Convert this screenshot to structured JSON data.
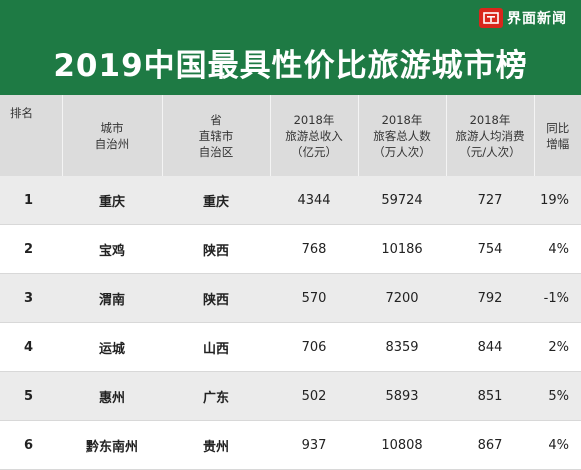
{
  "brand": {
    "name": "界面新闻"
  },
  "title": "2019中国最具性价比旅游城市榜",
  "columns": [
    {
      "key": "rank",
      "label": "排名"
    },
    {
      "key": "city",
      "label": "城市\n自治州"
    },
    {
      "key": "province",
      "label": "省\n直辖市\n自治区"
    },
    {
      "key": "revenue",
      "label": "2018年\n旅游总收入\n（亿元）"
    },
    {
      "key": "visitors",
      "label": "2018年\n旅客总人数\n（万人次）"
    },
    {
      "key": "per_capita",
      "label": "2018年\n旅游人均消费\n（元/人次）"
    },
    {
      "key": "growth",
      "label": "同比\n增幅"
    }
  ],
  "rows": [
    {
      "rank": "1",
      "city": "重庆",
      "province": "重庆",
      "revenue": "4344",
      "visitors": "59724",
      "per_capita": "727",
      "growth": "19%"
    },
    {
      "rank": "2",
      "city": "宝鸡",
      "province": "陕西",
      "revenue": "768",
      "visitors": "10186",
      "per_capita": "754",
      "growth": "4%"
    },
    {
      "rank": "3",
      "city": "渭南",
      "province": "陕西",
      "revenue": "570",
      "visitors": "7200",
      "per_capita": "792",
      "growth": "-1%"
    },
    {
      "rank": "4",
      "city": "运城",
      "province": "山西",
      "revenue": "706",
      "visitors": "8359",
      "per_capita": "844",
      "growth": "2%"
    },
    {
      "rank": "5",
      "city": "惠州",
      "province": "广东",
      "revenue": "502",
      "visitors": "5893",
      "per_capita": "851",
      "growth": "5%"
    },
    {
      "rank": "6",
      "city": "黔东南州",
      "province": "贵州",
      "revenue": "937",
      "visitors": "10808",
      "per_capita": "867",
      "growth": "4%"
    }
  ],
  "colors": {
    "header_bg": "#1e7a44",
    "brand_red": "#d9261c",
    "row_shade": "#ebebeb",
    "column_header_bg": "#dcdcdc"
  }
}
